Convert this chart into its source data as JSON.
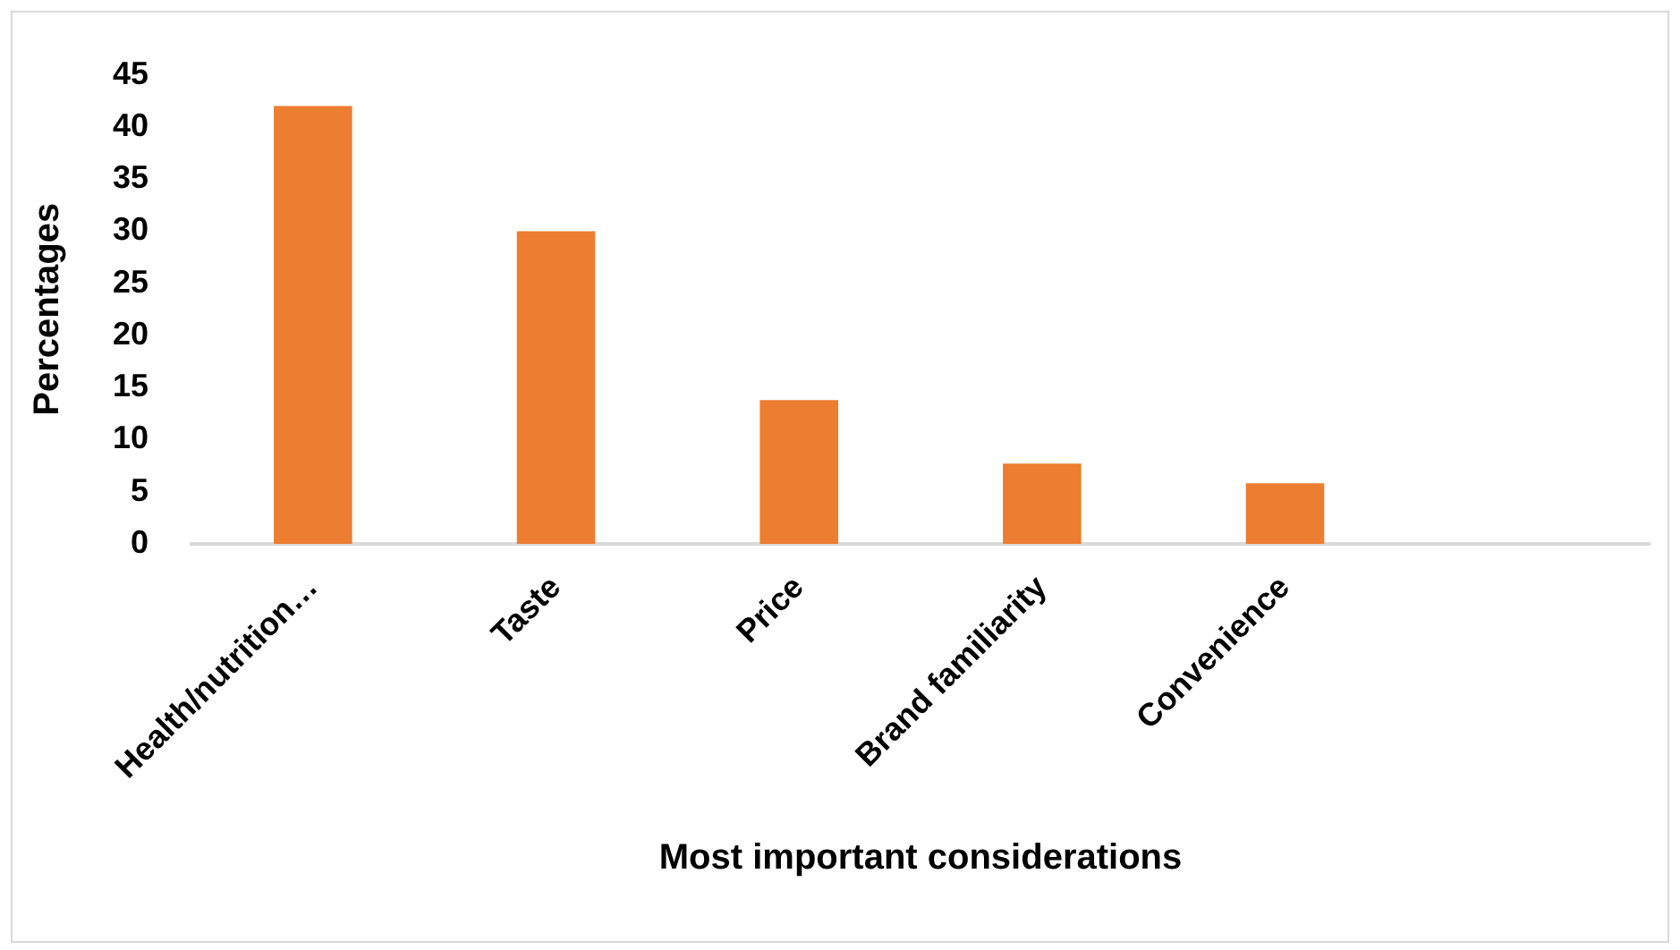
{
  "chart_data": {
    "type": "bar",
    "xlabel": "Most important considerations",
    "ylabel": "Percentages",
    "categories": [
      "Health/nutrition…",
      "Taste",
      "Price",
      "Brand familiarity",
      "Convenience",
      null
    ],
    "values": [
      42,
      30,
      13.8,
      7.7,
      5.8,
      null
    ],
    "color": "#ed7d31",
    "ylim": [
      0,
      45
    ],
    "yticks": [
      0,
      5,
      10,
      15,
      20,
      25,
      30,
      35,
      40,
      45
    ],
    "grid": false,
    "legend": false
  }
}
